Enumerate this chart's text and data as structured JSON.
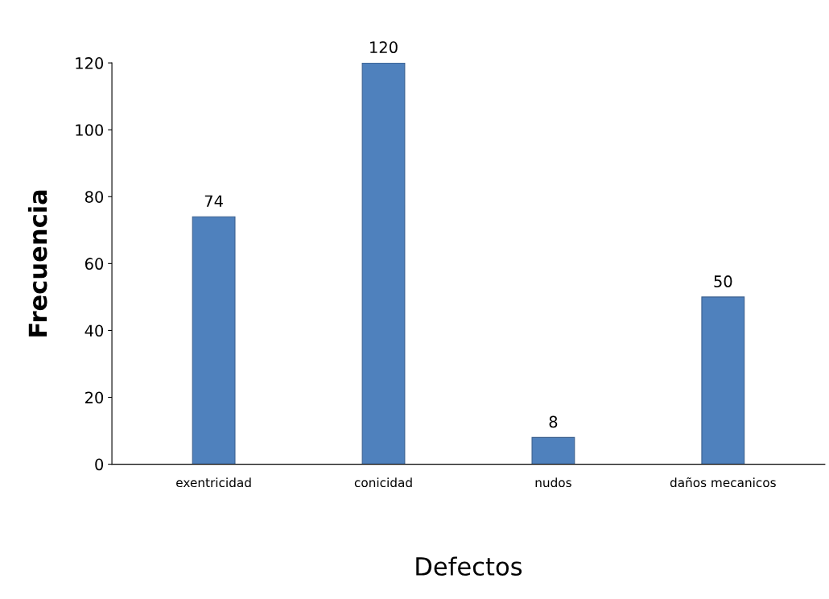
{
  "chart_data": {
    "type": "bar",
    "xlabel": "Defectos",
    "ylabel": "Frecuencia",
    "categories": [
      "exentricidad",
      "conicidad",
      "nudos",
      "daños mecanicos"
    ],
    "values": [
      74,
      120,
      8,
      50
    ],
    "color": "#4f81bd",
    "data_labels": true,
    "ylim": [
      0,
      120
    ],
    "yticks": [
      0,
      20,
      40,
      60,
      80,
      100,
      120
    ],
    "grid": false,
    "legend": false
  }
}
